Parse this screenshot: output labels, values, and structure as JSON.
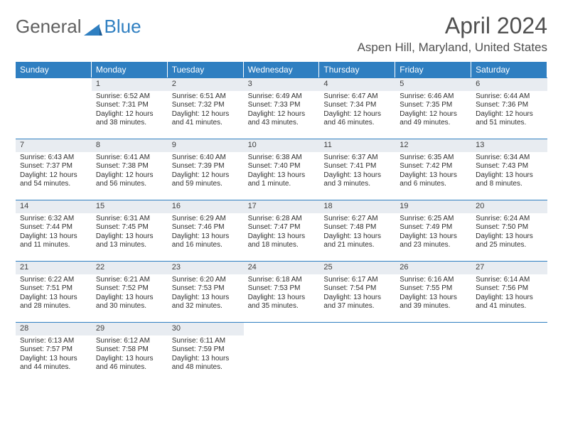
{
  "logo": {
    "text1": "General",
    "text2": "Blue",
    "color1": "#606060",
    "color2": "#2f7fc1"
  },
  "title": "April 2024",
  "location": "Aspen Hill, Maryland, United States",
  "colors": {
    "header_bg": "#2f7fc1",
    "header_text": "#ffffff",
    "daynum_bg": "#e8ecf1",
    "rule": "#2f7fc1",
    "text": "#303030"
  },
  "day_headers": [
    "Sunday",
    "Monday",
    "Tuesday",
    "Wednesday",
    "Thursday",
    "Friday",
    "Saturday"
  ],
  "leading_empty": 1,
  "trailing_empty": 4,
  "days": [
    {
      "n": 1,
      "sr": "6:52 AM",
      "ss": "7:31 PM",
      "dl": "12 hours and 38 minutes."
    },
    {
      "n": 2,
      "sr": "6:51 AM",
      "ss": "7:32 PM",
      "dl": "12 hours and 41 minutes."
    },
    {
      "n": 3,
      "sr": "6:49 AM",
      "ss": "7:33 PM",
      "dl": "12 hours and 43 minutes."
    },
    {
      "n": 4,
      "sr": "6:47 AM",
      "ss": "7:34 PM",
      "dl": "12 hours and 46 minutes."
    },
    {
      "n": 5,
      "sr": "6:46 AM",
      "ss": "7:35 PM",
      "dl": "12 hours and 49 minutes."
    },
    {
      "n": 6,
      "sr": "6:44 AM",
      "ss": "7:36 PM",
      "dl": "12 hours and 51 minutes."
    },
    {
      "n": 7,
      "sr": "6:43 AM",
      "ss": "7:37 PM",
      "dl": "12 hours and 54 minutes."
    },
    {
      "n": 8,
      "sr": "6:41 AM",
      "ss": "7:38 PM",
      "dl": "12 hours and 56 minutes."
    },
    {
      "n": 9,
      "sr": "6:40 AM",
      "ss": "7:39 PM",
      "dl": "12 hours and 59 minutes."
    },
    {
      "n": 10,
      "sr": "6:38 AM",
      "ss": "7:40 PM",
      "dl": "13 hours and 1 minute."
    },
    {
      "n": 11,
      "sr": "6:37 AM",
      "ss": "7:41 PM",
      "dl": "13 hours and 3 minutes."
    },
    {
      "n": 12,
      "sr": "6:35 AM",
      "ss": "7:42 PM",
      "dl": "13 hours and 6 minutes."
    },
    {
      "n": 13,
      "sr": "6:34 AM",
      "ss": "7:43 PM",
      "dl": "13 hours and 8 minutes."
    },
    {
      "n": 14,
      "sr": "6:32 AM",
      "ss": "7:44 PM",
      "dl": "13 hours and 11 minutes."
    },
    {
      "n": 15,
      "sr": "6:31 AM",
      "ss": "7:45 PM",
      "dl": "13 hours and 13 minutes."
    },
    {
      "n": 16,
      "sr": "6:29 AM",
      "ss": "7:46 PM",
      "dl": "13 hours and 16 minutes."
    },
    {
      "n": 17,
      "sr": "6:28 AM",
      "ss": "7:47 PM",
      "dl": "13 hours and 18 minutes."
    },
    {
      "n": 18,
      "sr": "6:27 AM",
      "ss": "7:48 PM",
      "dl": "13 hours and 21 minutes."
    },
    {
      "n": 19,
      "sr": "6:25 AM",
      "ss": "7:49 PM",
      "dl": "13 hours and 23 minutes."
    },
    {
      "n": 20,
      "sr": "6:24 AM",
      "ss": "7:50 PM",
      "dl": "13 hours and 25 minutes."
    },
    {
      "n": 21,
      "sr": "6:22 AM",
      "ss": "7:51 PM",
      "dl": "13 hours and 28 minutes."
    },
    {
      "n": 22,
      "sr": "6:21 AM",
      "ss": "7:52 PM",
      "dl": "13 hours and 30 minutes."
    },
    {
      "n": 23,
      "sr": "6:20 AM",
      "ss": "7:53 PM",
      "dl": "13 hours and 32 minutes."
    },
    {
      "n": 24,
      "sr": "6:18 AM",
      "ss": "7:53 PM",
      "dl": "13 hours and 35 minutes."
    },
    {
      "n": 25,
      "sr": "6:17 AM",
      "ss": "7:54 PM",
      "dl": "13 hours and 37 minutes."
    },
    {
      "n": 26,
      "sr": "6:16 AM",
      "ss": "7:55 PM",
      "dl": "13 hours and 39 minutes."
    },
    {
      "n": 27,
      "sr": "6:14 AM",
      "ss": "7:56 PM",
      "dl": "13 hours and 41 minutes."
    },
    {
      "n": 28,
      "sr": "6:13 AM",
      "ss": "7:57 PM",
      "dl": "13 hours and 44 minutes."
    },
    {
      "n": 29,
      "sr": "6:12 AM",
      "ss": "7:58 PM",
      "dl": "13 hours and 46 minutes."
    },
    {
      "n": 30,
      "sr": "6:11 AM",
      "ss": "7:59 PM",
      "dl": "13 hours and 48 minutes."
    }
  ],
  "labels": {
    "sunrise": "Sunrise:",
    "sunset": "Sunset:",
    "daylight": "Daylight:"
  }
}
